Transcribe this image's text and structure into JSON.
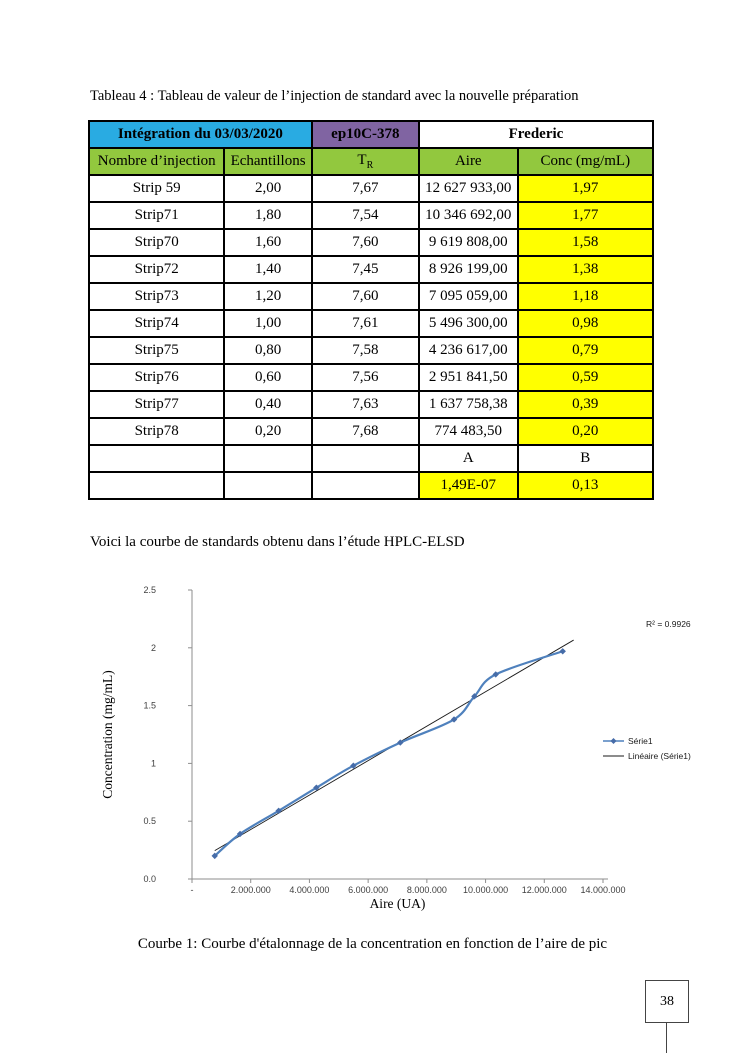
{
  "document": {
    "table_title": "Tableau 4 : Tableau de valeur de l’injection de standard avec la nouvelle préparation",
    "intro_text": "Voici la courbe de standards obtenu dans l’étude HPLC-ELSD",
    "chart_caption": "Courbe  1: Courbe d'étalonnage de la concentration en fonction de l’aire de pic",
    "page_number": "38"
  },
  "table": {
    "top_header": [
      {
        "label": "Intégration du 03/03/2020",
        "bg": "#29abe2",
        "colspan": 2
      },
      {
        "label": "ep10C-378",
        "bg": "#8064a2",
        "colspan": 1
      },
      {
        "label": "Frederic",
        "bg": "#ffffff",
        "colspan": 2
      }
    ],
    "columns": [
      "Nombre d’injection",
      "Echantillons",
      "TR",
      "Aire",
      "Conc (mg/mL)"
    ],
    "tr_header": {
      "base": "T",
      "sub": "R"
    },
    "rows": [
      [
        "Strip 59",
        "2,00",
        "7,67",
        "12 627 933,00",
        "1,97"
      ],
      [
        "Strip71",
        "1,80",
        "7,54",
        "10 346 692,00",
        "1,77"
      ],
      [
        "Strip70",
        "1,60",
        "7,60",
        "9 619 808,00",
        "1,58"
      ],
      [
        "Strip72",
        "1,40",
        "7,45",
        "8 926 199,00",
        "1,38"
      ],
      [
        "Strip73",
        "1,20",
        "7,60",
        "7 095 059,00",
        "1,18"
      ],
      [
        "Strip74",
        "1,00",
        "7,61",
        "5 496 300,00",
        "0,98"
      ],
      [
        "Strip75",
        "0,80",
        "7,58",
        "4 236 617,00",
        "0,79"
      ],
      [
        "Strip76",
        "0,60",
        "7,56",
        "2 951 841,50",
        "0,59"
      ],
      [
        "Strip77",
        "0,40",
        "7,63",
        "1 637 758,38",
        "0,39"
      ],
      [
        "Strip78",
        "0,20",
        "7,68",
        "774 483,50",
        "0,20"
      ]
    ],
    "footer_rows": [
      {
        "cells": [
          "",
          "",
          "",
          "A",
          "B"
        ],
        "highlight": []
      },
      {
        "cells": [
          "",
          "",
          "",
          "1,49E-07",
          "0,13"
        ],
        "highlight": [
          3,
          4
        ]
      }
    ],
    "colors": {
      "header_green": "#92c83e",
      "highlight_yellow": "#ffff00",
      "integration_blue": "#29abe2",
      "code_purple": "#8064a2"
    }
  },
  "chart_data": {
    "type": "line",
    "title": "",
    "xlabel": "Aire (UA)",
    "ylabel": "Concentration (mg/mL)",
    "xlim": [
      0,
      14000000
    ],
    "ylim": [
      0,
      2.5
    ],
    "grid": false,
    "legend_position": "right",
    "x_ticks": [
      0,
      2000000,
      4000000,
      6000000,
      8000000,
      10000000,
      12000000,
      14000000
    ],
    "x_tick_labels": [
      "-",
      "2.000.000",
      "4.000.000",
      "6.000.000",
      "8.000.000",
      "10.000.000",
      "12.000.000",
      "14.000.000"
    ],
    "y_ticks": [
      0,
      0.5,
      1,
      1.5,
      2,
      2.5
    ],
    "y_tick_labels": [
      "0.0",
      "0.5",
      "1",
      "1.5",
      "2",
      "2.5"
    ],
    "series": [
      {
        "name": "Série1",
        "color": "#4f81bd",
        "marker": "diamond",
        "marker_color": "#466ca8",
        "x": [
          774483.5,
          1637758.38,
          2951841.5,
          4236617,
          5496300,
          7095059,
          8926199,
          9619808,
          10346692,
          12627933
        ],
        "y": [
          0.2,
          0.39,
          0.59,
          0.79,
          0.98,
          1.18,
          1.38,
          1.58,
          1.77,
          1.97
        ]
      }
    ],
    "trendline": {
      "name": "Linéaire (Série1)",
      "color": "#1a1a1a",
      "slope": 1.49e-07,
      "intercept": 0.13,
      "x_range": [
        774483.5,
        13000000
      ]
    },
    "annotations": [
      {
        "text": "R² = 0.9926"
      }
    ],
    "legend": [
      "Série1",
      "Linéaire (Série1)"
    ]
  }
}
